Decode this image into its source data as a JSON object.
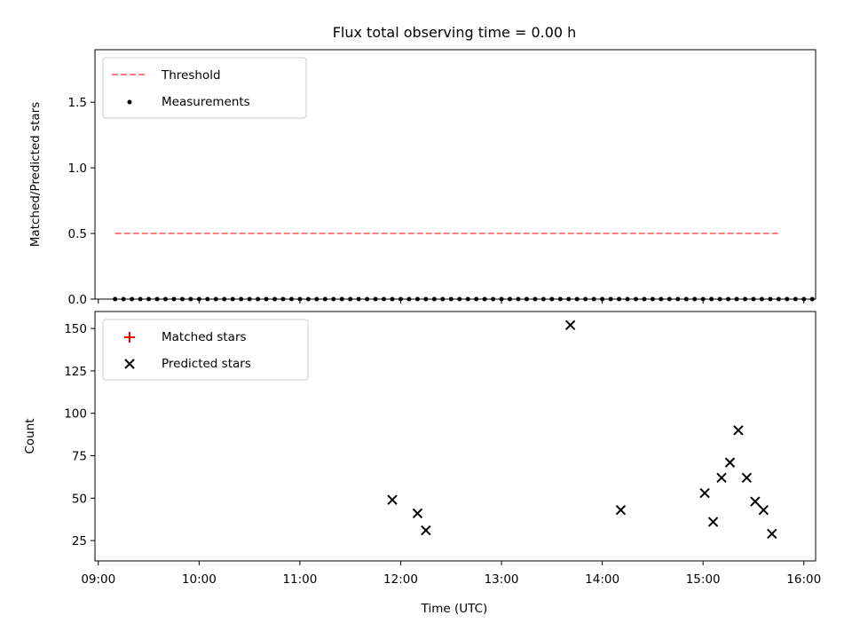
{
  "chart_data": [
    {
      "type": "scatter",
      "title": "Flux total observing time = 0.00 h",
      "xlabel": "",
      "ylabel": "Matched/Predicted stars",
      "xlim": [
        "08:58",
        "16:07"
      ],
      "ylim": [
        0,
        1.9
      ],
      "yticks": [
        0.0,
        0.5,
        1.0,
        1.5
      ],
      "ytick_labels": [
        "0.0",
        "0.5",
        "1.0",
        "1.5"
      ],
      "legend_position": "top-left",
      "series": [
        {
          "name": "Threshold",
          "kind": "dashed-line",
          "color": "#ff7f7f",
          "x": [
            "09:10",
            "15:46"
          ],
          "y": [
            0.5,
            0.5
          ]
        },
        {
          "name": "Measurements",
          "kind": "dots",
          "color": "#000000",
          "x": [
            "09:10",
            "09:15",
            "09:20",
            "09:25",
            "09:30",
            "09:35",
            "09:40",
            "09:45",
            "09:50",
            "09:55",
            "10:00",
            "10:05",
            "10:10",
            "10:15",
            "10:20",
            "10:25",
            "10:30",
            "10:35",
            "10:40",
            "10:45",
            "10:50",
            "10:55",
            "11:00",
            "11:05",
            "11:10",
            "11:15",
            "11:20",
            "11:25",
            "11:30",
            "11:35",
            "11:40",
            "11:45",
            "11:50",
            "11:55",
            "12:00",
            "12:05",
            "12:10",
            "12:15",
            "12:20",
            "12:25",
            "12:30",
            "12:35",
            "12:40",
            "12:45",
            "12:50",
            "12:55",
            "13:00",
            "13:05",
            "13:10",
            "13:15",
            "13:20",
            "13:25",
            "13:30",
            "13:35",
            "13:40",
            "13:45",
            "13:50",
            "13:55",
            "14:00",
            "14:05",
            "14:10",
            "14:15",
            "14:20",
            "14:25",
            "14:30",
            "14:35",
            "14:40",
            "14:45",
            "14:50",
            "14:55",
            "15:00",
            "15:05",
            "15:10",
            "15:15",
            "15:20",
            "15:25",
            "15:30",
            "15:35",
            "15:40",
            "15:45",
            "15:50",
            "15:55",
            "16:00",
            "16:05"
          ],
          "y": [
            0,
            0,
            0,
            0,
            0,
            0,
            0,
            0,
            0,
            0,
            0,
            0,
            0,
            0,
            0,
            0,
            0,
            0,
            0,
            0,
            0,
            0,
            0,
            0,
            0,
            0,
            0,
            0,
            0,
            0,
            0,
            0,
            0,
            0,
            0,
            0,
            0,
            0,
            0,
            0,
            0,
            0,
            0,
            0,
            0,
            0,
            0,
            0,
            0,
            0,
            0,
            0,
            0,
            0,
            0,
            0,
            0,
            0,
            0,
            0,
            0,
            0,
            0,
            0,
            0,
            0,
            0,
            0,
            0,
            0,
            0,
            0,
            0,
            0,
            0,
            0,
            0,
            0,
            0,
            0,
            0,
            0,
            0,
            0
          ]
        }
      ]
    },
    {
      "type": "scatter",
      "title": "",
      "xlabel": "Time (UTC)",
      "ylabel": "Count",
      "xlim": [
        "08:58",
        "16:07"
      ],
      "ylim": [
        13,
        160
      ],
      "yticks": [
        25,
        50,
        75,
        100,
        125,
        150
      ],
      "ytick_labels": [
        "25",
        "50",
        "75",
        "100",
        "125",
        "150"
      ],
      "xticks": [
        "09:00",
        "10:00",
        "11:00",
        "12:00",
        "13:00",
        "14:00",
        "15:00",
        "16:00"
      ],
      "legend_position": "top-left",
      "series": [
        {
          "name": "Matched stars",
          "kind": "plus",
          "color": "#ff0000",
          "x": [],
          "y": []
        },
        {
          "name": "Predicted stars",
          "kind": "x",
          "color": "#000000",
          "x": [
            "11:55",
            "12:10",
            "12:15",
            "13:41",
            "14:11",
            "15:01",
            "15:06",
            "15:11",
            "15:16",
            "15:21",
            "15:26",
            "15:31",
            "15:36",
            "15:41"
          ],
          "y": [
            49,
            41,
            31,
            152,
            43,
            53,
            36,
            62,
            71,
            90,
            62,
            48,
            43,
            29
          ]
        }
      ]
    }
  ]
}
